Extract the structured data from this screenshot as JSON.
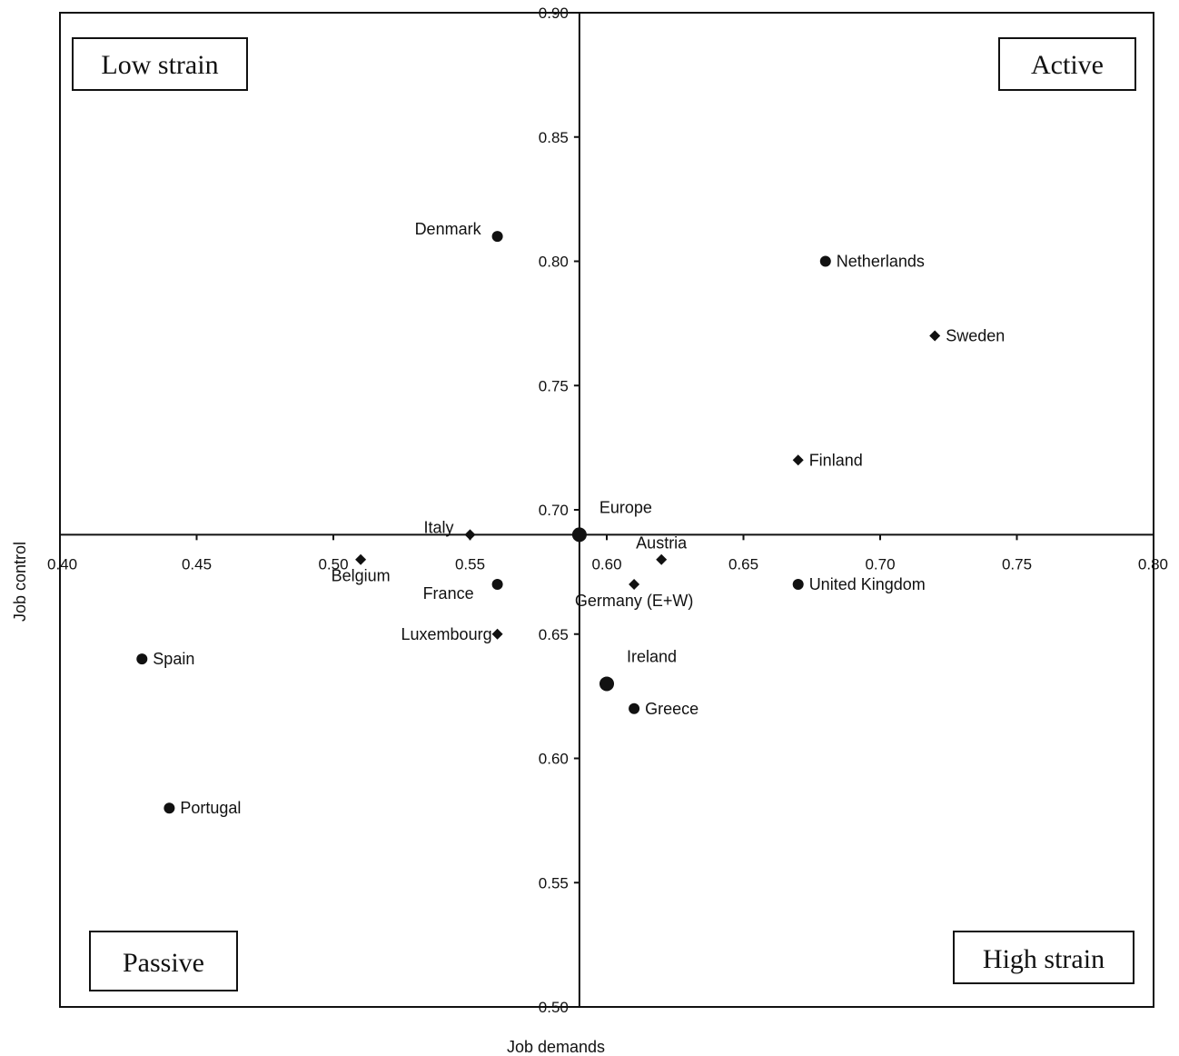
{
  "chart_data": {
    "type": "scatter",
    "title": "",
    "xlabel": "Job demands",
    "ylabel": "Job control",
    "xlim": [
      0.4,
      0.8
    ],
    "ylim": [
      0.5,
      0.9
    ],
    "x_ticks": [
      "0.40",
      "0.45",
      "0.50",
      "0.55",
      "0.60",
      "0.65",
      "0.70",
      "0.75",
      "0.80"
    ],
    "y_ticks": [
      "0.50",
      "0.55",
      "0.60",
      "0.65",
      "0.70",
      "0.75",
      "0.80",
      "0.85",
      "0.90"
    ],
    "x_tick_values": [
      0.4,
      0.45,
      0.5,
      0.55,
      0.6,
      0.65,
      0.7,
      0.75,
      0.8
    ],
    "y_tick_values": [
      0.5,
      0.55,
      0.6,
      0.65,
      0.7,
      0.75,
      0.8,
      0.85,
      0.9
    ],
    "crossing": {
      "x": 0.59,
      "y": 0.69
    },
    "grid": false,
    "quadrants": [
      {
        "label": "Low strain",
        "position": "top-left"
      },
      {
        "label": "Active",
        "position": "top-right"
      },
      {
        "label": "Passive",
        "position": "bottom-left"
      },
      {
        "label": "High strain",
        "position": "bottom-right"
      }
    ],
    "points": [
      {
        "label": "Denmark",
        "x": 0.56,
        "y": 0.81,
        "marker": "circle",
        "label_side": "upper-left"
      },
      {
        "label": "Netherlands",
        "x": 0.68,
        "y": 0.8,
        "marker": "circle",
        "label_side": "right"
      },
      {
        "label": "Sweden",
        "x": 0.72,
        "y": 0.77,
        "marker": "diamond",
        "label_side": "right"
      },
      {
        "label": "Finland",
        "x": 0.67,
        "y": 0.72,
        "marker": "diamond",
        "label_side": "right"
      },
      {
        "label": "Italy",
        "x": 0.55,
        "y": 0.69,
        "marker": "diamond",
        "label_side": "upper-left"
      },
      {
        "label": "Europe",
        "x": 0.59,
        "y": 0.69,
        "marker": "big-circle",
        "label_side": "upper-right"
      },
      {
        "label": "Austria",
        "x": 0.62,
        "y": 0.68,
        "marker": "diamond",
        "label_side": "above"
      },
      {
        "label": "Belgium",
        "x": 0.51,
        "y": 0.68,
        "marker": "diamond",
        "label_side": "below"
      },
      {
        "label": "France",
        "x": 0.56,
        "y": 0.67,
        "marker": "circle",
        "label_side": "lower-left"
      },
      {
        "label": "Germany (E+W)",
        "x": 0.61,
        "y": 0.67,
        "marker": "diamond",
        "label_side": "below"
      },
      {
        "label": "United Kingdom",
        "x": 0.67,
        "y": 0.67,
        "marker": "circle",
        "label_side": "right"
      },
      {
        "label": "Luxembourg",
        "x": 0.56,
        "y": 0.65,
        "marker": "diamond",
        "label_side": "left"
      },
      {
        "label": "Spain",
        "x": 0.43,
        "y": 0.64,
        "marker": "circle",
        "label_side": "right"
      },
      {
        "label": "Ireland",
        "x": 0.6,
        "y": 0.63,
        "marker": "big-circle",
        "label_side": "upper-right"
      },
      {
        "label": "Greece",
        "x": 0.61,
        "y": 0.62,
        "marker": "circle",
        "label_side": "right"
      },
      {
        "label": "Portugal",
        "x": 0.44,
        "y": 0.58,
        "marker": "circle",
        "label_side": "right"
      }
    ]
  }
}
